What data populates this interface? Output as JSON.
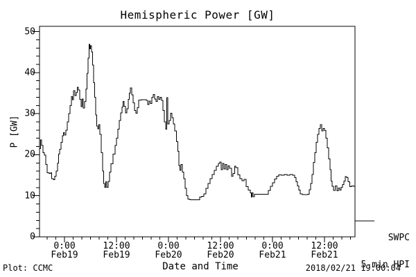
{
  "title": "Hemispheric Power [GW]",
  "legend": {
    "series": "SWPC",
    "description": "5-min HPI"
  },
  "footer": {
    "left": "Plot: CCMC",
    "right": "2018/02/21 19:00:04"
  },
  "chart_data": {
    "type": "line",
    "title": "Hemispheric Power [GW]",
    "xlabel": "Date and Time",
    "ylabel": "P [GW]",
    "series_name": "SWPC 5-min HPI",
    "line_color": "#000000",
    "grid": false,
    "legend_position": "outside-right-bottom",
    "ylim": [
      0,
      51.3
    ],
    "y_major_ticks": [
      0,
      10,
      20,
      30,
      40,
      50
    ],
    "y_minor_step": 2,
    "x_unit": "hours since 2018-02-18 18:00",
    "xlim": [
      0.24,
      73.04
    ],
    "x_minor_step_hours": 2,
    "x_major_ticks": [
      {
        "hours": 6,
        "time": "0:00",
        "date": "Feb19"
      },
      {
        "hours": 18,
        "time": "12:00",
        "date": "Feb19"
      },
      {
        "hours": 30,
        "time": "0:00",
        "date": "Feb20"
      },
      {
        "hours": 42,
        "time": "12:00",
        "date": "Feb20"
      },
      {
        "hours": 54,
        "time": "0:00",
        "date": "Feb21"
      },
      {
        "hours": 66,
        "time": "12:00",
        "date": "Feb21"
      }
    ],
    "points": [
      [
        0.24,
        21.5
      ],
      [
        0.48,
        23.6
      ],
      [
        0.72,
        22.3
      ],
      [
        1.04,
        20.5
      ],
      [
        1.36,
        19.9
      ],
      [
        1.68,
        17.6
      ],
      [
        2.0,
        15.6
      ],
      [
        2.48,
        15.4
      ],
      [
        2.8,
        15.6
      ],
      [
        3.04,
        14.2
      ],
      [
        3.44,
        13.9
      ],
      [
        3.76,
        14.8
      ],
      [
        4.08,
        16.0
      ],
      [
        4.4,
        18.0
      ],
      [
        4.64,
        20.2
      ],
      [
        4.88,
        21.3
      ],
      [
        5.2,
        23.0
      ],
      [
        5.52,
        24.6
      ],
      [
        5.76,
        25.4
      ],
      [
        6.0,
        24.8
      ],
      [
        6.32,
        26.0
      ],
      [
        6.64,
        28.0
      ],
      [
        6.96,
        30.0
      ],
      [
        7.28,
        32.0
      ],
      [
        7.6,
        34.2
      ],
      [
        7.84,
        33.4
      ],
      [
        8.08,
        35.6
      ],
      [
        8.4,
        34.4
      ],
      [
        8.72,
        35.2
      ],
      [
        8.96,
        36.4
      ],
      [
        9.2,
        35.8
      ],
      [
        9.52,
        33.5
      ],
      [
        9.84,
        31.7
      ],
      [
        10.08,
        33.6
      ],
      [
        10.32,
        31.4
      ],
      [
        10.64,
        33.0
      ],
      [
        10.96,
        36.0
      ],
      [
        11.2,
        39.8
      ],
      [
        11.44,
        43.5
      ],
      [
        11.68,
        46.9
      ],
      [
        11.84,
        45.8
      ],
      [
        12.0,
        46.6
      ],
      [
        12.24,
        45.0
      ],
      [
        12.48,
        41.8
      ],
      [
        12.72,
        37.5
      ],
      [
        12.96,
        34.0
      ],
      [
        13.2,
        29.7
      ],
      [
        13.44,
        27.0
      ],
      [
        13.68,
        26.3
      ],
      [
        13.92,
        27.3
      ],
      [
        14.16,
        25.0
      ],
      [
        14.48,
        20.5
      ],
      [
        14.8,
        16.0
      ],
      [
        15.04,
        13.0
      ],
      [
        15.28,
        12.1
      ],
      [
        15.52,
        13.4
      ],
      [
        15.76,
        12.1
      ],
      [
        16.08,
        13.5
      ],
      [
        16.4,
        15.8
      ],
      [
        16.72,
        17.8
      ],
      [
        17.2,
        20.2
      ],
      [
        17.68,
        22.3
      ],
      [
        18.0,
        24.0
      ],
      [
        18.32,
        26.2
      ],
      [
        18.64,
        28.3
      ],
      [
        18.96,
        30.2
      ],
      [
        19.28,
        31.6
      ],
      [
        19.52,
        33.0
      ],
      [
        19.76,
        31.8
      ],
      [
        20.08,
        30.2
      ],
      [
        20.4,
        31.2
      ],
      [
        20.72,
        33.5
      ],
      [
        20.96,
        35.0
      ],
      [
        21.2,
        36.3
      ],
      [
        21.52,
        34.6
      ],
      [
        21.84,
        32.6
      ],
      [
        22.16,
        30.8
      ],
      [
        22.48,
        30.1
      ],
      [
        22.8,
        31.5
      ],
      [
        23.12,
        33.3
      ],
      [
        23.76,
        33.4
      ],
      [
        24.4,
        33.4
      ],
      [
        24.88,
        33.2
      ],
      [
        25.2,
        32.2
      ],
      [
        25.52,
        33.1
      ],
      [
        25.84,
        32.5
      ],
      [
        26.16,
        34.0
      ],
      [
        26.48,
        34.7
      ],
      [
        26.8,
        33.6
      ],
      [
        27.12,
        33.0
      ],
      [
        27.44,
        34.2
      ],
      [
        27.76,
        33.5
      ],
      [
        28.08,
        34.0
      ],
      [
        28.4,
        33.2
      ],
      [
        28.72,
        30.8
      ],
      [
        29.04,
        28.0
      ],
      [
        29.36,
        26.2
      ],
      [
        29.6,
        33.9
      ],
      [
        29.84,
        27.5
      ],
      [
        30.16,
        28.3
      ],
      [
        30.48,
        30.1
      ],
      [
        30.8,
        29.0
      ],
      [
        31.12,
        27.5
      ],
      [
        31.44,
        25.8
      ],
      [
        31.84,
        23.2
      ],
      [
        32.16,
        20.8
      ],
      [
        32.4,
        17.4
      ],
      [
        32.64,
        16.2
      ],
      [
        32.88,
        17.6
      ],
      [
        33.2,
        15.8
      ],
      [
        33.52,
        14.2
      ],
      [
        33.84,
        11.8
      ],
      [
        34.16,
        10.0
      ],
      [
        34.48,
        9.2
      ],
      [
        34.96,
        9.0
      ],
      [
        35.6,
        9.0
      ],
      [
        36.24,
        9.0
      ],
      [
        36.88,
        9.0
      ],
      [
        37.2,
        9.7
      ],
      [
        37.68,
        9.9
      ],
      [
        38.16,
        10.5
      ],
      [
        38.64,
        11.8
      ],
      [
        39.12,
        13.0
      ],
      [
        39.6,
        14.2
      ],
      [
        40.08,
        15.2
      ],
      [
        40.56,
        16.2
      ],
      [
        41.04,
        17.2
      ],
      [
        41.52,
        17.9
      ],
      [
        41.84,
        18.2
      ],
      [
        42.16,
        16.4
      ],
      [
        42.48,
        17.9
      ],
      [
        42.8,
        16.5
      ],
      [
        43.12,
        17.6
      ],
      [
        43.44,
        16.4
      ],
      [
        43.76,
        17.3
      ],
      [
        44.08,
        16.7
      ],
      [
        44.56,
        14.8
      ],
      [
        44.88,
        15.4
      ],
      [
        45.28,
        17.2
      ],
      [
        45.52,
        16.9
      ],
      [
        46.0,
        15.1
      ],
      [
        46.48,
        14.2
      ],
      [
        46.96,
        13.7
      ],
      [
        47.44,
        14.0
      ],
      [
        47.92,
        12.2
      ],
      [
        48.4,
        11.4
      ],
      [
        48.88,
        10.7
      ],
      [
        49.12,
        9.7
      ],
      [
        49.28,
        10.7
      ],
      [
        49.52,
        9.8
      ],
      [
        49.84,
        10.4
      ],
      [
        50.64,
        10.4
      ],
      [
        51.6,
        10.4
      ],
      [
        52.56,
        10.4
      ],
      [
        53.04,
        11.3
      ],
      [
        53.52,
        12.3
      ],
      [
        54.0,
        13.2
      ],
      [
        54.48,
        14.1
      ],
      [
        54.96,
        14.8
      ],
      [
        55.44,
        15.1
      ],
      [
        56.08,
        15.0
      ],
      [
        56.72,
        15.2
      ],
      [
        57.36,
        15.0
      ],
      [
        58.0,
        15.2
      ],
      [
        58.64,
        15.0
      ],
      [
        59.12,
        14.4
      ],
      [
        59.44,
        13.4
      ],
      [
        59.76,
        12.4
      ],
      [
        60.08,
        11.4
      ],
      [
        60.4,
        10.5
      ],
      [
        60.88,
        10.3
      ],
      [
        61.52,
        10.3
      ],
      [
        62.16,
        10.4
      ],
      [
        62.48,
        11.5
      ],
      [
        62.8,
        13.0
      ],
      [
        63.12,
        15.2
      ],
      [
        63.44,
        18.1
      ],
      [
        63.76,
        20.5
      ],
      [
        64.08,
        23.0
      ],
      [
        64.4,
        25.0
      ],
      [
        64.72,
        26.4
      ],
      [
        65.04,
        27.3
      ],
      [
        65.36,
        25.8
      ],
      [
        65.68,
        26.4
      ],
      [
        66.0,
        25.9
      ],
      [
        66.32,
        24.0
      ],
      [
        66.64,
        21.7
      ],
      [
        66.96,
        19.0
      ],
      [
        67.28,
        16.4
      ],
      [
        67.52,
        13.6
      ],
      [
        67.76,
        12.3
      ],
      [
        68.08,
        11.3
      ],
      [
        68.48,
        12.4
      ],
      [
        68.88,
        11.2
      ],
      [
        69.2,
        11.9
      ],
      [
        69.52,
        11.4
      ],
      [
        69.84,
        12.1
      ],
      [
        70.16,
        12.7
      ],
      [
        70.48,
        13.6
      ],
      [
        70.8,
        14.7
      ],
      [
        71.12,
        14.4
      ],
      [
        71.44,
        13.4
      ],
      [
        71.84,
        12.2
      ],
      [
        72.24,
        12.4
      ],
      [
        72.72,
        12.3
      ],
      [
        73.04,
        12.4
      ]
    ]
  }
}
